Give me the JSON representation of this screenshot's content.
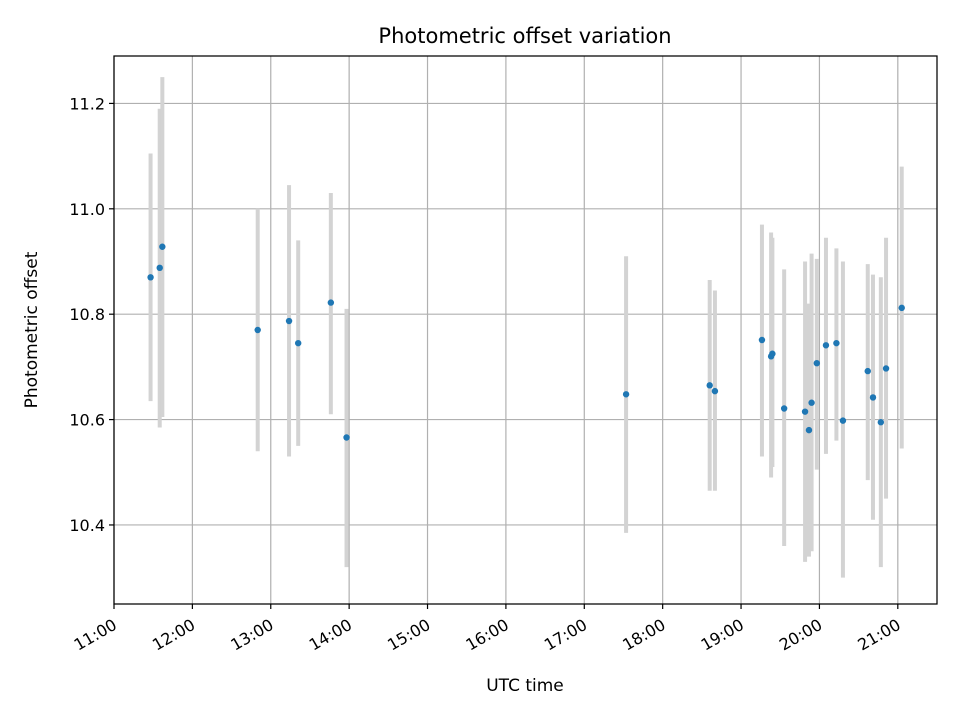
{
  "chart_data": {
    "type": "scatter",
    "title": "Photometric offset variation",
    "xlabel": "UTC time",
    "ylabel": "Photometric offset",
    "grid": true,
    "xlim": [
      "11:00",
      "21:30"
    ],
    "ylim": [
      10.25,
      11.29
    ],
    "x_ticks": [
      "11:00",
      "12:00",
      "13:00",
      "14:00",
      "15:00",
      "16:00",
      "17:00",
      "18:00",
      "19:00",
      "20:00",
      "21:00"
    ],
    "y_ticks": [
      "10.4",
      "10.6",
      "10.8",
      "11.0",
      "11.2"
    ],
    "colors": {
      "point": "#1f77b4",
      "errorbar": "#d3d3d3",
      "grid": "#b0b0b0"
    },
    "points": [
      {
        "time": "11:28",
        "y": 10.87,
        "err_low": 10.635,
        "err_high": 11.105
      },
      {
        "time": "11:35",
        "y": 10.888,
        "err_low": 10.585,
        "err_high": 11.19
      },
      {
        "time": "11:37",
        "y": 10.928,
        "err_low": 10.605,
        "err_high": 11.25
      },
      {
        "time": "12:50",
        "y": 10.77,
        "err_low": 10.54,
        "err_high": 11.0
      },
      {
        "time": "13:14",
        "y": 10.787,
        "err_low": 10.53,
        "err_high": 11.045
      },
      {
        "time": "13:21",
        "y": 10.745,
        "err_low": 10.55,
        "err_high": 10.94
      },
      {
        "time": "13:46",
        "y": 10.822,
        "err_low": 10.61,
        "err_high": 11.03
      },
      {
        "time": "13:58",
        "y": 10.566,
        "err_low": 10.32,
        "err_high": 10.81
      },
      {
        "time": "17:32",
        "y": 10.648,
        "err_low": 10.385,
        "err_high": 10.91
      },
      {
        "time": "18:36",
        "y": 10.665,
        "err_low": 10.465,
        "err_high": 10.865
      },
      {
        "time": "18:40",
        "y": 10.654,
        "err_low": 10.465,
        "err_high": 10.845
      },
      {
        "time": "19:16",
        "y": 10.751,
        "err_low": 10.53,
        "err_high": 10.97
      },
      {
        "time": "19:23",
        "y": 10.72,
        "err_low": 10.49,
        "err_high": 10.955
      },
      {
        "time": "19:24",
        "y": 10.725,
        "err_low": 10.51,
        "err_high": 10.945
      },
      {
        "time": "19:33",
        "y": 10.621,
        "err_low": 10.36,
        "err_high": 10.885
      },
      {
        "time": "19:49",
        "y": 10.615,
        "err_low": 10.33,
        "err_high": 10.9
      },
      {
        "time": "19:52",
        "y": 10.58,
        "err_low": 10.34,
        "err_high": 10.82
      },
      {
        "time": "19:54",
        "y": 10.632,
        "err_low": 10.35,
        "err_high": 10.915
      },
      {
        "time": "19:58",
        "y": 10.707,
        "err_low": 10.505,
        "err_high": 10.905
      },
      {
        "time": "20:05",
        "y": 10.741,
        "err_low": 10.535,
        "err_high": 10.945
      },
      {
        "time": "20:13",
        "y": 10.745,
        "err_low": 10.56,
        "err_high": 10.925
      },
      {
        "time": "20:18",
        "y": 10.598,
        "err_low": 10.3,
        "err_high": 10.9
      },
      {
        "time": "20:37",
        "y": 10.692,
        "err_low": 10.485,
        "err_high": 10.895
      },
      {
        "time": "20:41",
        "y": 10.642,
        "err_low": 10.41,
        "err_high": 10.875
      },
      {
        "time": "20:47",
        "y": 10.595,
        "err_low": 10.32,
        "err_high": 10.87
      },
      {
        "time": "20:51",
        "y": 10.697,
        "err_low": 10.45,
        "err_high": 10.945
      },
      {
        "time": "21:03",
        "y": 10.812,
        "err_low": 10.545,
        "err_high": 11.08
      }
    ]
  }
}
